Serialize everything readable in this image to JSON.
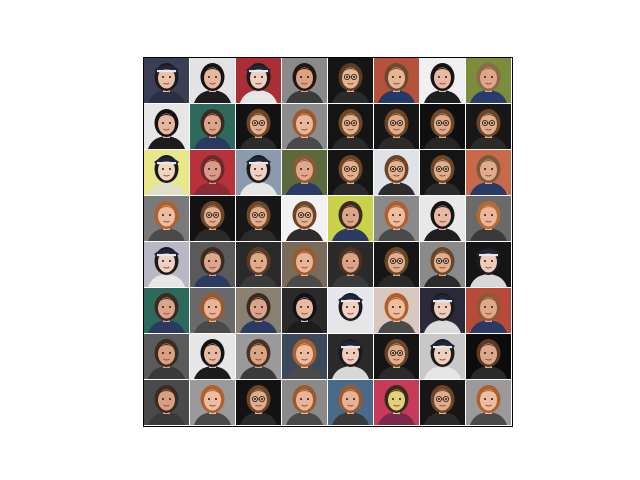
{
  "figure": {
    "rows": 8,
    "cols": 8,
    "tiles": [
      [
        {
          "bg": "#3a3f55",
          "hair": "#1a1a24",
          "skin": "#e9c2a6",
          "hat": true,
          "glasses": false,
          "shirt": "#2a2f44"
        },
        {
          "bg": "#e3e3e6",
          "hair": "#141414",
          "skin": "#e7b7a0",
          "hat": false,
          "glasses": false,
          "shirt": "#1d1d1d"
        },
        {
          "bg": "#a92e36",
          "hair": "#1a1a1a",
          "skin": "#f0cfc0",
          "hat": true,
          "glasses": false,
          "shirt": "#e6e6e6"
        },
        {
          "bg": "#8a8a8a",
          "hair": "#221612",
          "skin": "#d8a283",
          "hat": false,
          "glasses": false,
          "shirt": "#3b3b3b"
        },
        {
          "bg": "#151515",
          "hair": "#5b3b24",
          "skin": "#e3b48f",
          "hat": false,
          "glasses": true,
          "shirt": "#2a2a2a"
        },
        {
          "bg": "#b6513a",
          "hair": "#6a4a2e",
          "skin": "#e6b597",
          "hat": false,
          "glasses": false,
          "shirt": "#223a68"
        },
        {
          "bg": "#f0f0f0",
          "hair": "#141414",
          "skin": "#e8b9a3",
          "hat": false,
          "glasses": false,
          "shirt": "#1e1e1e"
        },
        {
          "bg": "#7b8d3a",
          "hair": "#8a6a4a",
          "skin": "#e0a58a",
          "hat": false,
          "glasses": false,
          "shirt": "#2a3c6c"
        }
      ],
      [
        {
          "bg": "#e6e6e6",
          "hair": "#121212",
          "skin": "#e6b7a1",
          "hat": false,
          "glasses": false,
          "shirt": "#1c1c1c"
        },
        {
          "bg": "#2e6a5c",
          "hair": "#3b2a1f",
          "skin": "#dba58a",
          "hat": false,
          "glasses": false,
          "shirt": "#2a3a60"
        },
        {
          "bg": "#121212",
          "hair": "#6a4527",
          "skin": "#e2b08d",
          "hat": false,
          "glasses": true,
          "shirt": "#2b2b2b"
        },
        {
          "bg": "#8c8c8c",
          "hair": "#9a5a2e",
          "skin": "#eab79a",
          "hat": false,
          "glasses": false,
          "shirt": "#4a4a4a"
        },
        {
          "bg": "#141414",
          "hair": "#6b4628",
          "skin": "#e2b08d",
          "hat": false,
          "glasses": true,
          "shirt": "#2a2a2a"
        },
        {
          "bg": "#161616",
          "hair": "#6a4527",
          "skin": "#e0ad8b",
          "hat": false,
          "glasses": true,
          "shirt": "#2b2b2b"
        },
        {
          "bg": "#0f0f0f",
          "hair": "#6c4829",
          "skin": "#dfab89",
          "hat": false,
          "glasses": true,
          "shirt": "#262626"
        },
        {
          "bg": "#171717",
          "hair": "#6a4527",
          "skin": "#e1ae8c",
          "hat": false,
          "glasses": true,
          "shirt": "#2b2b2b"
        }
      ],
      [
        {
          "bg": "#e8e88a",
          "hair": "#1a1a1a",
          "skin": "#f1d6bd",
          "hat": true,
          "glasses": false,
          "shirt": "#e0e0c8"
        },
        {
          "bg": "#b8323c",
          "hair": "#6a2a2a",
          "skin": "#d99a88",
          "hat": false,
          "glasses": false,
          "shirt": "#8a2a34"
        },
        {
          "bg": "#8c9aae",
          "hair": "#1a1a1a",
          "skin": "#f0d2c4",
          "hat": true,
          "glasses": false,
          "shirt": "#e6e6e6"
        },
        {
          "bg": "#5a6a3c",
          "hair": "#8a5a36",
          "skin": "#e0a88a",
          "hat": false,
          "glasses": false,
          "shirt": "#2a3a64"
        },
        {
          "bg": "#151515",
          "hair": "#6a4527",
          "skin": "#e3b18e",
          "hat": false,
          "glasses": true,
          "shirt": "#2a2a2a"
        },
        {
          "bg": "#dfe3e8",
          "hair": "#6a4527",
          "skin": "#e4b391",
          "hat": false,
          "glasses": true,
          "shirt": "#2c2c2c"
        },
        {
          "bg": "#141414",
          "hair": "#6b4628",
          "skin": "#e1ae8c",
          "hat": false,
          "glasses": true,
          "shirt": "#2a2a2a"
        },
        {
          "bg": "#c86a4a",
          "hair": "#7a5a3a",
          "skin": "#e2ab8d",
          "hat": false,
          "glasses": false,
          "shirt": "#2a3a66"
        }
      ],
      [
        {
          "bg": "#7a7a7a",
          "hair": "#b0602e",
          "skin": "#ecbd9e",
          "hat": false,
          "glasses": false,
          "shirt": "#4a4a4a"
        },
        {
          "bg": "#121212",
          "hair": "#6a4527",
          "skin": "#e1ae8c",
          "hat": false,
          "glasses": true,
          "shirt": "#2a2a2a"
        },
        {
          "bg": "#171717",
          "hair": "#6c4829",
          "skin": "#e0ad8b",
          "hat": false,
          "glasses": true,
          "shirt": "#2b2b2b"
        },
        {
          "bg": "#f2f2f2",
          "hair": "#6a4527",
          "skin": "#e4b391",
          "hat": false,
          "glasses": true,
          "shirt": "#2c2c2c"
        },
        {
          "bg": "#c9d24a",
          "hair": "#3b2a1f",
          "skin": "#dba58a",
          "hat": false,
          "glasses": false,
          "shirt": "#2a3a62"
        },
        {
          "bg": "#8a8a8a",
          "hair": "#b0602e",
          "skin": "#ecbd9e",
          "hat": false,
          "glasses": false,
          "shirt": "#4a4a4a"
        },
        {
          "bg": "#e8e8e8",
          "hair": "#141414",
          "skin": "#e7b8a2",
          "hat": false,
          "glasses": false,
          "shirt": "#1e1e1e"
        },
        {
          "bg": "#6a6a6a",
          "hair": "#b36a36",
          "skin": "#eab79a",
          "hat": false,
          "glasses": false,
          "shirt": "#3a3a3a"
        }
      ],
      [
        {
          "bg": "#b8b8c4",
          "hair": "#1a1a1a",
          "skin": "#f0d0c0",
          "hat": true,
          "glasses": false,
          "shirt": "#e6e6e6"
        },
        {
          "bg": "#5a5a5a",
          "hair": "#3b2a1f",
          "skin": "#dca78b",
          "hat": false,
          "glasses": false,
          "shirt": "#2a3a64"
        },
        {
          "bg": "#2a2a2a",
          "hair": "#5a3a24",
          "skin": "#e0ab8b",
          "hat": false,
          "glasses": false,
          "shirt": "#3a3a3a"
        },
        {
          "bg": "#7a6a5a",
          "hair": "#9a5a2e",
          "skin": "#e8b598",
          "hat": false,
          "glasses": false,
          "shirt": "#4a4a4a"
        },
        {
          "bg": "#2a2a2a",
          "hair": "#4a3222",
          "skin": "#dba487",
          "hat": false,
          "glasses": false,
          "shirt": "#3a3a3a"
        },
        {
          "bg": "#161616",
          "hair": "#6a4527",
          "skin": "#e1ae8c",
          "hat": false,
          "glasses": true,
          "shirt": "#2a2a2a"
        },
        {
          "bg": "#8a8a8a",
          "hair": "#6a4527",
          "skin": "#e2af8d",
          "hat": false,
          "glasses": true,
          "shirt": "#2b2b2b"
        },
        {
          "bg": "#151515",
          "hair": "#1a1a1a",
          "skin": "#eecbbb",
          "hat": true,
          "glasses": false,
          "shirt": "#d8d8d8"
        }
      ],
      [
        {
          "bg": "#2e6a5c",
          "hair": "#3b2a1f",
          "skin": "#dba58a",
          "hat": false,
          "glasses": false,
          "shirt": "#2a3a60"
        },
        {
          "bg": "#6a6a6a",
          "hair": "#9a5a2e",
          "skin": "#e8b598",
          "hat": false,
          "glasses": false,
          "shirt": "#4a4a4a"
        },
        {
          "bg": "#8a8070",
          "hair": "#3b2a1f",
          "skin": "#dba58a",
          "hat": false,
          "glasses": false,
          "shirt": "#2a3a60"
        },
        {
          "bg": "#2a2a2a",
          "hair": "#121212",
          "skin": "#e7b8a2",
          "hat": false,
          "glasses": false,
          "shirt": "#1c1c1c"
        },
        {
          "bg": "#e6e6ee",
          "hair": "#1a1a1a",
          "skin": "#f0d0c0",
          "hat": true,
          "glasses": false,
          "shirt": "#e6e6e6"
        },
        {
          "bg": "#d8c8c0",
          "hair": "#b0602e",
          "skin": "#ecbd9e",
          "hat": false,
          "glasses": false,
          "shirt": "#4a4a4a"
        },
        {
          "bg": "#2a2a3a",
          "hair": "#1a1a1a",
          "skin": "#efcdbd",
          "hat": true,
          "glasses": false,
          "shirt": "#dcdcdc"
        },
        {
          "bg": "#b84a3a",
          "hair": "#8a5a36",
          "skin": "#e0a88a",
          "hat": false,
          "glasses": false,
          "shirt": "#2a3a64"
        }
      ],
      [
        {
          "bg": "#5a5a5a",
          "hair": "#3b2a1f",
          "skin": "#d8a083",
          "hat": false,
          "glasses": false,
          "shirt": "#3a3a3a"
        },
        {
          "bg": "#e6e6e6",
          "hair": "#121212",
          "skin": "#e7b8a2",
          "hat": false,
          "glasses": false,
          "shirt": "#1c1c1c"
        },
        {
          "bg": "#9a9a9a",
          "hair": "#4a3222",
          "skin": "#dba487",
          "hat": false,
          "glasses": false,
          "shirt": "#3a3a3a"
        },
        {
          "bg": "#3a4a5a",
          "hair": "#b0602e",
          "skin": "#ecbd9e",
          "hat": false,
          "glasses": false,
          "shirt": "#4a4a4a"
        },
        {
          "bg": "#2a2a2a",
          "hair": "#1a1a1a",
          "skin": "#eecbbb",
          "hat": true,
          "glasses": false,
          "shirt": "#d8d8d8"
        },
        {
          "bg": "#151515",
          "hair": "#6a4527",
          "skin": "#e1ae8c",
          "hat": false,
          "glasses": true,
          "shirt": "#2a2a2a"
        },
        {
          "bg": "#c8c8c8",
          "hair": "#1a1a1a",
          "skin": "#f0d0c0",
          "hat": true,
          "glasses": false,
          "shirt": "#e6e6e6"
        },
        {
          "bg": "#0c0c0c",
          "hair": "#5a3a24",
          "skin": "#dca88a",
          "hat": false,
          "glasses": false,
          "shirt": "#2a2a2a"
        }
      ],
      [
        {
          "bg": "#4a4a4a",
          "hair": "#3b2a1f",
          "skin": "#d8a083",
          "hat": false,
          "glasses": false,
          "shirt": "#3a3a3a"
        },
        {
          "bg": "#9a9a9a",
          "hair": "#b0602e",
          "skin": "#ecbd9e",
          "hat": false,
          "glasses": false,
          "shirt": "#4a4a4a"
        },
        {
          "bg": "#121212",
          "hair": "#6a4527",
          "skin": "#e1ae8c",
          "hat": false,
          "glasses": true,
          "shirt": "#2a2a2a"
        },
        {
          "bg": "#8a8a8a",
          "hair": "#9a5a2e",
          "skin": "#e8b598",
          "hat": false,
          "glasses": false,
          "shirt": "#4a4a4a"
        },
        {
          "bg": "#4a6a8a",
          "hair": "#9a5a2e",
          "skin": "#e6b295",
          "hat": false,
          "glasses": false,
          "shirt": "#3a3a3a"
        },
        {
          "bg": "#c83a5a",
          "hair": "#3a2a1a",
          "skin": "#e0d07a",
          "hat": false,
          "glasses": false,
          "shirt": "#7a2a4a"
        },
        {
          "bg": "#161616",
          "hair": "#6a4527",
          "skin": "#e1ae8c",
          "hat": false,
          "glasses": true,
          "shirt": "#2a2a2a"
        },
        {
          "bg": "#9a9a9a",
          "hair": "#b0602e",
          "skin": "#ecbd9e",
          "hat": false,
          "glasses": false,
          "shirt": "#4a4a4a"
        }
      ]
    ]
  }
}
